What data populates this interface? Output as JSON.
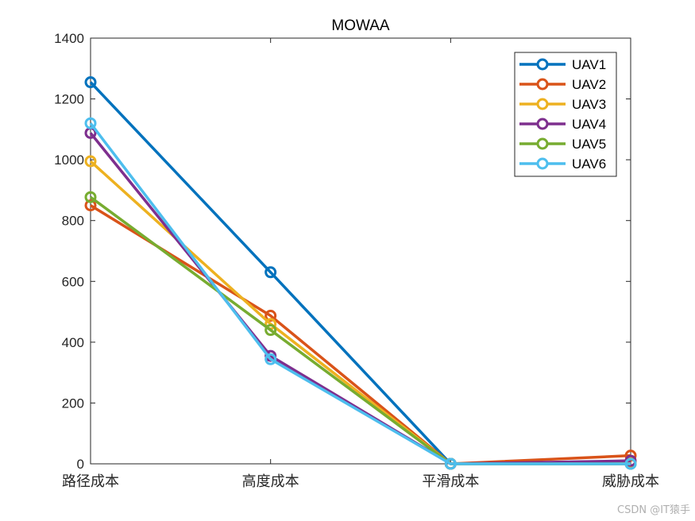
{
  "chart_data": {
    "type": "line",
    "title": "MOWAA",
    "xlabel": "",
    "ylabel": "",
    "categories": [
      "路径成本",
      "高度成本",
      "平滑成本",
      "威胁成本"
    ],
    "ylim": [
      0,
      1400
    ],
    "yticks": [
      0,
      200,
      400,
      600,
      800,
      1000,
      1200,
      1400
    ],
    "legend_position": "top-right",
    "grid": false,
    "series": [
      {
        "name": "UAV1",
        "color": "#0072BD",
        "values": [
          1255,
          630,
          0,
          0
        ]
      },
      {
        "name": "UAV2",
        "color": "#D95319",
        "values": [
          850,
          487,
          0,
          27
        ]
      },
      {
        "name": "UAV3",
        "color": "#EDB120",
        "values": [
          995,
          460,
          0,
          5
        ]
      },
      {
        "name": "UAV4",
        "color": "#7E2F8E",
        "values": [
          1088,
          355,
          0,
          10
        ]
      },
      {
        "name": "UAV5",
        "color": "#77AC30",
        "values": [
          877,
          440,
          0,
          0
        ]
      },
      {
        "name": "UAV6",
        "color": "#4DBEEE",
        "values": [
          1120,
          344,
          0,
          0
        ]
      }
    ]
  },
  "watermark": "CSDN @IT猿手"
}
